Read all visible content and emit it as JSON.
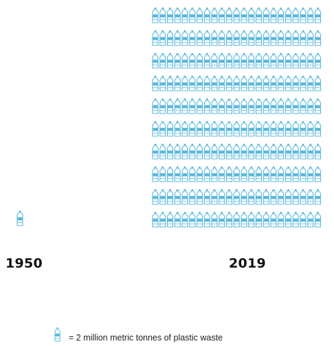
{
  "chart_data": {
    "type": "pictograph",
    "unit_value": 2,
    "unit_label": "= 2 million metric tonnes of plastic waste",
    "icon": "plastic-bottle-icon",
    "icon_color": "#5bb8dc",
    "categories": [
      "1950",
      "2019"
    ],
    "icon_counts": [
      1,
      230
    ],
    "grid_2019": {
      "rows": 10,
      "columns": 23
    }
  },
  "labels": {
    "year_1950": "1950",
    "year_2019": "2019"
  },
  "legend": {
    "text": "= 2 million metric tonnes of plastic waste"
  }
}
